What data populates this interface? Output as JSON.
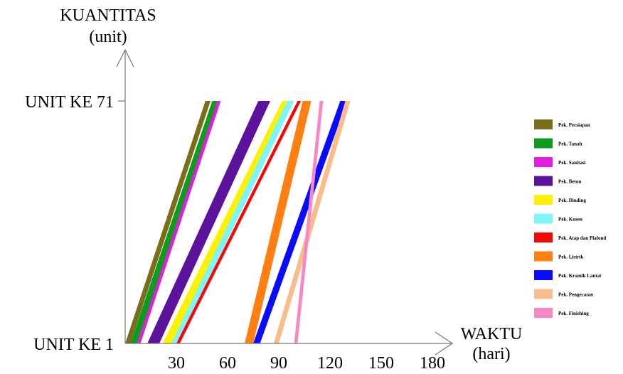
{
  "chart_data": {
    "type": "line",
    "y_axis": {
      "title_line1": "KUANTITAS",
      "title_line2": "(unit)",
      "tick_labels": [
        "UNIT KE 1",
        "UNIT KE 71"
      ],
      "range": [
        1,
        71
      ]
    },
    "x_axis": {
      "title_line1": "WAKTU",
      "title_line2": "(hari)",
      "ticks": [
        30,
        60,
        90,
        120,
        150,
        180
      ],
      "tick_labels": [
        "30",
        "60",
        "90",
        "120",
        "150",
        "180"
      ],
      "range": [
        0,
        185
      ]
    },
    "grid": false,
    "legend_position": "right",
    "series": [
      {
        "name": "Pek. Persiapan",
        "color": "#7a6e1a",
        "start": [
          0,
          1
        ],
        "end": [
          47,
          71
        ],
        "band_days": 3
      },
      {
        "name": "Pek. Tanah",
        "color": "#0e9a1f",
        "start": [
          3,
          1
        ],
        "end": [
          51,
          71
        ],
        "band_days": 4
      },
      {
        "name": "Pek. Sanitasi",
        "color": "#e21ce0",
        "start": [
          7,
          1
        ],
        "end": [
          54,
          71
        ],
        "band_days": 2
      },
      {
        "name": "Pek. Beton",
        "color": "#5b139c",
        "start": [
          13,
          1
        ],
        "end": [
          78,
          71
        ],
        "band_days": 7
      },
      {
        "name": "Pek. Dinding",
        "color": "#fff200",
        "start": [
          22,
          1
        ],
        "end": [
          92,
          71
        ],
        "band_days": 6
      },
      {
        "name": "Pek. Kusen",
        "color": "#7ff5f7",
        "start": [
          27,
          1
        ],
        "end": [
          95,
          71
        ],
        "band_days": 4
      },
      {
        "name": "Pek. Atap dan Plafond",
        "color": "#fa0505",
        "start": [
          30,
          1
        ],
        "end": [
          101,
          71
        ],
        "band_days": 2
      },
      {
        "name": "Pek. Listrik",
        "color": "#ff8011",
        "start": [
          70,
          1
        ],
        "end": [
          104,
          71
        ],
        "band_days": 5
      },
      {
        "name": "Pek. Kramik Lantai",
        "color": "#0a0aff",
        "start": [
          75,
          1
        ],
        "end": [
          126,
          71
        ],
        "band_days": 4
      },
      {
        "name": "Pek. Pengecatan",
        "color": "#f9bd8c",
        "start": [
          87,
          1
        ],
        "end": [
          129,
          71
        ],
        "band_days": 3
      },
      {
        "name": "Pek. Finishing",
        "color": "#f788c4",
        "start": [
          99,
          1
        ],
        "end": [
          114,
          71
        ],
        "band_days": 2
      }
    ]
  }
}
